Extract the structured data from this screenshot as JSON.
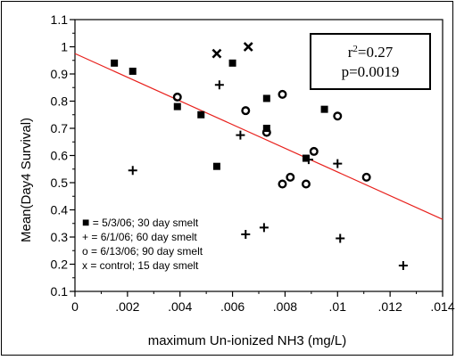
{
  "chart_data": {
    "type": "scatter",
    "xlabel": "maximum  Un-ionized NH3  (mg/L)",
    "ylabel": "Mean(Day4 Survival)",
    "xlim": [
      0,
      0.014
    ],
    "ylim": [
      0.1,
      1.1
    ],
    "x_ticks": [
      "0",
      ".002",
      ".004",
      ".006",
      ".008",
      ".01",
      ".012",
      ".014"
    ],
    "y_ticks": [
      "0.1",
      "0.2",
      "0.3",
      "0.4",
      "0.5",
      "0.6",
      "0.7",
      "0.8",
      "0.9",
      "1",
      "1.1"
    ],
    "grid": false,
    "regression": {
      "x": [
        0,
        0.014
      ],
      "y": [
        0.975,
        0.365
      ],
      "color": "#e8201c"
    },
    "stats": {
      "r2_base": "r",
      "r2_exp": "2",
      "r2_value": "=0.27",
      "p": "p=0.0019"
    },
    "legend": [
      {
        "marker": "square",
        "symbol": "■",
        "label": " = 5/3/06; 30 day smelt"
      },
      {
        "marker": "plus",
        "symbol": "+",
        "label": " = 6/1/06; 60 day smelt"
      },
      {
        "marker": "circle",
        "symbol": "o",
        "label": " = 6/13/06; 90 day smelt"
      },
      {
        "marker": "cross",
        "symbol": "x",
        "label": " = control; 15 day smelt"
      }
    ],
    "series": [
      {
        "marker": "square",
        "points": [
          [
            0.0015,
            0.94
          ],
          [
            0.0022,
            0.91
          ],
          [
            0.0039,
            0.78
          ],
          [
            0.0048,
            0.75
          ],
          [
            0.0054,
            0.56
          ],
          [
            0.006,
            0.94
          ],
          [
            0.0073,
            0.81
          ],
          [
            0.0073,
            0.7
          ],
          [
            0.0088,
            0.59
          ],
          [
            0.0095,
            0.77
          ]
        ]
      },
      {
        "marker": "plus",
        "points": [
          [
            0.0022,
            0.545
          ],
          [
            0.0055,
            0.86
          ],
          [
            0.0063,
            0.675
          ],
          [
            0.0065,
            0.31
          ],
          [
            0.0072,
            0.335
          ],
          [
            0.0089,
            0.585
          ],
          [
            0.01,
            0.57
          ],
          [
            0.0101,
            0.295
          ],
          [
            0.0125,
            0.195
          ]
        ]
      },
      {
        "marker": "circle",
        "points": [
          [
            0.0039,
            0.815
          ],
          [
            0.0065,
            0.765
          ],
          [
            0.0073,
            0.685
          ],
          [
            0.0079,
            0.825
          ],
          [
            0.0079,
            0.495
          ],
          [
            0.0082,
            0.52
          ],
          [
            0.0088,
            0.495
          ],
          [
            0.0091,
            0.615
          ],
          [
            0.01,
            0.745
          ],
          [
            0.0111,
            0.52
          ]
        ]
      },
      {
        "marker": "cross",
        "points": [
          [
            0.0054,
            0.975
          ],
          [
            0.0066,
            1.0
          ]
        ]
      }
    ]
  }
}
